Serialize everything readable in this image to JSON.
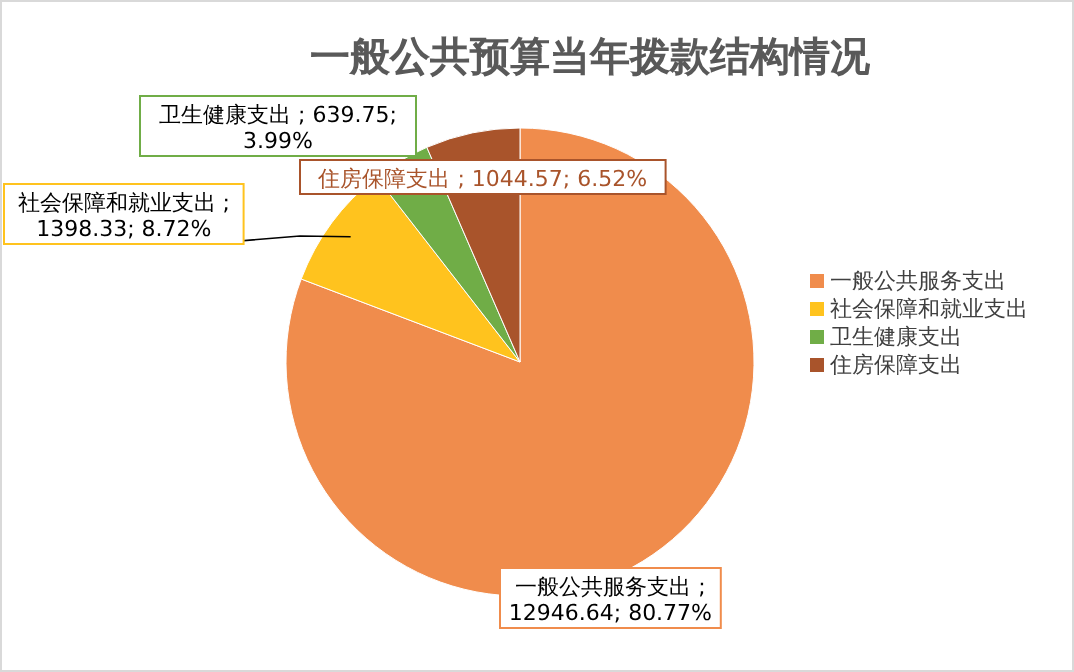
{
  "chart_data": {
    "type": "pie",
    "title": "一般公共预算当年拨款结构情况",
    "categories": [
      "一般公共服务支出",
      "社会保障和就业支出",
      "卫生健康支出",
      "住房保障支出"
    ],
    "values": [
      12946.64,
      1398.33,
      639.75,
      1044.57
    ],
    "colors": [
      "#f08c4c",
      "#ffc31e",
      "#70ad47",
      "#a9542b"
    ],
    "value_labels": [
      "一般公共服务支出 ; 12946.64; 80.77%",
      "社会保障和就业支出 ; 1398.33; 8.72%",
      "卫生健康支出 ; 639.75; 3.99%",
      "住房保障支出 ; 1044.57; 6.52%"
    ],
    "legend": "right"
  }
}
